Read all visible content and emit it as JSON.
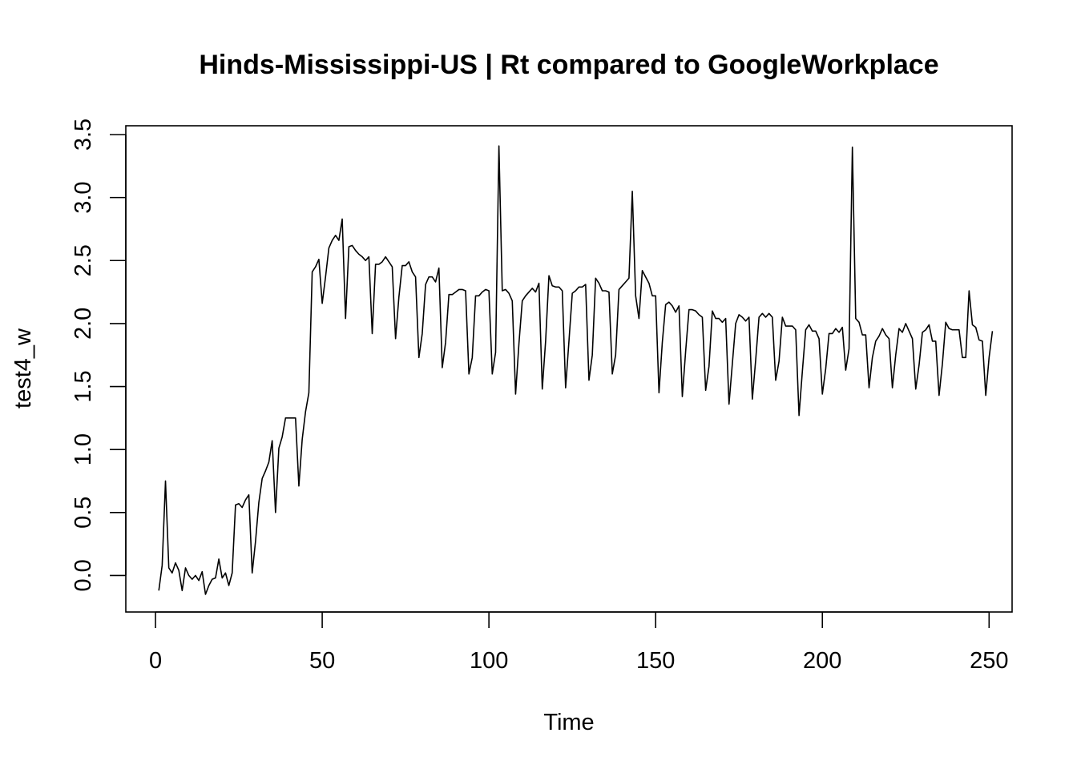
{
  "chart_data": {
    "type": "line",
    "title": "Hinds-Mississippi-US | Rt compared to GoogleWorkplace",
    "xlabel": "Time",
    "ylabel": "test4_w",
    "xlim": [
      -8.9,
      256.9
    ],
    "ylim": [
      -0.29,
      3.57
    ],
    "x_ticks": [
      0,
      50,
      100,
      150,
      200,
      250
    ],
    "y_ticks": [
      0.0,
      0.5,
      1.0,
      1.5,
      2.0,
      2.5,
      3.0,
      3.5
    ],
    "x_tick_labels": [
      "0",
      "50",
      "100",
      "150",
      "200",
      "250"
    ],
    "y_tick_labels": [
      "0.0",
      "0.5",
      "1.0",
      "1.5",
      "2.0",
      "2.5",
      "3.0",
      "3.5"
    ],
    "grid": false,
    "legend": "none",
    "line_color": "#000000",
    "x_start": 1,
    "series": [
      {
        "values": [
          -0.12,
          0.08,
          0.75,
          0.06,
          0.02,
          0.1,
          0.04,
          -0.12,
          0.06,
          0.0,
          -0.03,
          0.0,
          -0.04,
          0.03,
          -0.15,
          -0.08,
          -0.03,
          -0.02,
          0.13,
          -0.02,
          0.02,
          -0.08,
          0.02,
          0.56,
          0.57,
          0.54,
          0.6,
          0.64,
          0.02,
          0.27,
          0.58,
          0.77,
          0.83,
          0.9,
          1.07,
          0.5,
          1.01,
          1.1,
          1.25,
          1.25,
          1.25,
          1.25,
          0.71,
          1.08,
          1.3,
          1.45,
          2.41,
          2.45,
          2.51,
          2.16,
          2.37,
          2.6,
          2.66,
          2.7,
          2.66,
          2.83,
          2.04,
          2.61,
          2.62,
          2.58,
          2.55,
          2.53,
          2.5,
          2.53,
          1.92,
          2.47,
          2.47,
          2.49,
          2.53,
          2.49,
          2.45,
          1.88,
          2.21,
          2.46,
          2.46,
          2.49,
          2.41,
          2.37,
          1.73,
          1.92,
          2.31,
          2.37,
          2.37,
          2.33,
          2.44,
          1.65,
          1.85,
          2.23,
          2.23,
          2.25,
          2.27,
          2.27,
          2.26,
          1.6,
          1.73,
          2.22,
          2.22,
          2.25,
          2.27,
          2.26,
          1.6,
          1.77,
          3.41,
          2.26,
          2.27,
          2.24,
          2.18,
          1.44,
          1.84,
          2.18,
          2.22,
          2.25,
          2.28,
          2.25,
          2.32,
          1.48,
          1.86,
          2.38,
          2.3,
          2.29,
          2.29,
          2.26,
          1.49,
          1.86,
          2.24,
          2.26,
          2.29,
          2.29,
          2.31,
          1.55,
          1.75,
          2.36,
          2.32,
          2.26,
          2.26,
          2.25,
          1.6,
          1.75,
          2.27,
          2.3,
          2.33,
          2.36,
          3.05,
          2.22,
          2.04,
          2.42,
          2.37,
          2.32,
          2.22,
          2.22,
          1.45,
          1.85,
          2.15,
          2.17,
          2.14,
          2.09,
          2.14,
          1.42,
          1.78,
          2.11,
          2.11,
          2.1,
          2.07,
          2.05,
          1.47,
          1.66,
          2.1,
          2.04,
          2.04,
          2.01,
          2.04,
          1.36,
          1.68,
          2.0,
          2.07,
          2.05,
          2.02,
          2.05,
          1.4,
          1.71,
          2.05,
          2.08,
          2.05,
          2.08,
          2.05,
          1.55,
          1.7,
          2.05,
          1.98,
          1.98,
          1.98,
          1.95,
          1.27,
          1.62,
          1.95,
          1.99,
          1.94,
          1.94,
          1.88,
          1.44,
          1.64,
          1.92,
          1.92,
          1.96,
          1.93,
          1.97,
          1.63,
          1.8,
          3.4,
          2.04,
          2.01,
          1.91,
          1.91,
          1.49,
          1.73,
          1.86,
          1.9,
          1.96,
          1.91,
          1.88,
          1.49,
          1.75,
          1.96,
          1.93,
          2.0,
          1.94,
          1.88,
          1.48,
          1.67,
          1.93,
          1.95,
          1.99,
          1.86,
          1.86,
          1.43,
          1.68,
          2.01,
          1.96,
          1.95,
          1.95,
          1.95,
          1.73,
          1.73,
          2.26,
          1.99,
          1.97,
          1.87,
          1.86,
          1.43,
          1.73,
          1.94
        ]
      }
    ]
  }
}
